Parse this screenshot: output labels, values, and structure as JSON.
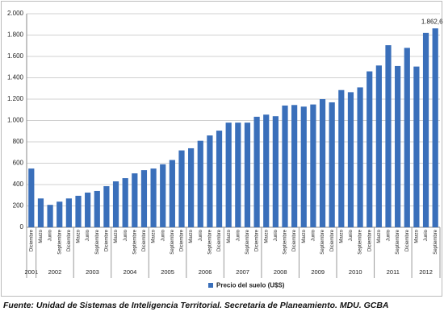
{
  "chart_data": {
    "type": "bar",
    "categories": [
      "Diciembre",
      "Marzo",
      "Junio",
      "Septiembre",
      "Diciembre",
      "Marzo",
      "Junio",
      "Septiembre",
      "Diciembre",
      "Marzo",
      "Junio",
      "Septiembre",
      "Diciembre",
      "Marzo",
      "Junio",
      "Septiembre",
      "Diciembre",
      "Marzo",
      "Junio",
      "Septiembre",
      "Diciembre",
      "Marzo",
      "Junio",
      "Septiembre",
      "Diciembre",
      "Marzo",
      "Junio",
      "Septiembre",
      "Diciembre",
      "Marzo",
      "Junio",
      "Septiembre",
      "Diciembre",
      "Marzo",
      "Junio",
      "Septiembre",
      "Diciembre",
      "Marzo",
      "Junio",
      "Septiembre",
      "Diciembre",
      "Marzo",
      "Junio",
      "Septiembre"
    ],
    "category_years": [
      "2001",
      "2002",
      null,
      null,
      null,
      "2003",
      null,
      null,
      null,
      "2004",
      null,
      null,
      null,
      "2005",
      null,
      null,
      null,
      "2006",
      null,
      null,
      null,
      "2007",
      null,
      null,
      null,
      "2008",
      null,
      null,
      null,
      "2009",
      null,
      null,
      null,
      "2010",
      null,
      null,
      null,
      "2011",
      null,
      null,
      null,
      "2012",
      null,
      null
    ],
    "series": [
      {
        "name": "Precio del suelo (U$S)",
        "color": "#3a6fba",
        "values": [
          550,
          270,
          210,
          240,
          270,
          295,
          325,
          340,
          385,
          430,
          460,
          505,
          535,
          550,
          590,
          630,
          720,
          740,
          810,
          860,
          905,
          980,
          980,
          980,
          1035,
          1055,
          1040,
          1140,
          1145,
          1130,
          1150,
          1200,
          1170,
          1285,
          1265,
          1310,
          1460,
          1515,
          1705,
          1510,
          1680,
          1505,
          1820,
          1862.6
        ],
        "value_labels": [
          null,
          null,
          null,
          null,
          null,
          null,
          null,
          null,
          null,
          null,
          null,
          null,
          null,
          null,
          null,
          null,
          null,
          null,
          null,
          null,
          null,
          null,
          null,
          null,
          null,
          null,
          null,
          null,
          null,
          null,
          null,
          null,
          null,
          null,
          null,
          null,
          null,
          null,
          null,
          null,
          null,
          null,
          null,
          "1.862,6"
        ]
      }
    ],
    "ylim": [
      0,
      2000
    ],
    "yticks": [
      0,
      200,
      400,
      600,
      800,
      {
        "value": 1000,
        "label": "1.000"
      },
      {
        "value": 1200,
        "label": "1.200"
      },
      {
        "value": 1400,
        "label": "1.400"
      },
      {
        "value": 1600,
        "label": "1.600"
      },
      {
        "value": 1800,
        "label": "1.800"
      },
      {
        "value": 2000,
        "label": "2.000"
      }
    ],
    "grid": true,
    "legend": "bottom"
  },
  "footnote": "Fuente: Unidad de Sistemas de Inteligencia Territorial. Secretaria de Planeamiento. MDU. GCBA"
}
